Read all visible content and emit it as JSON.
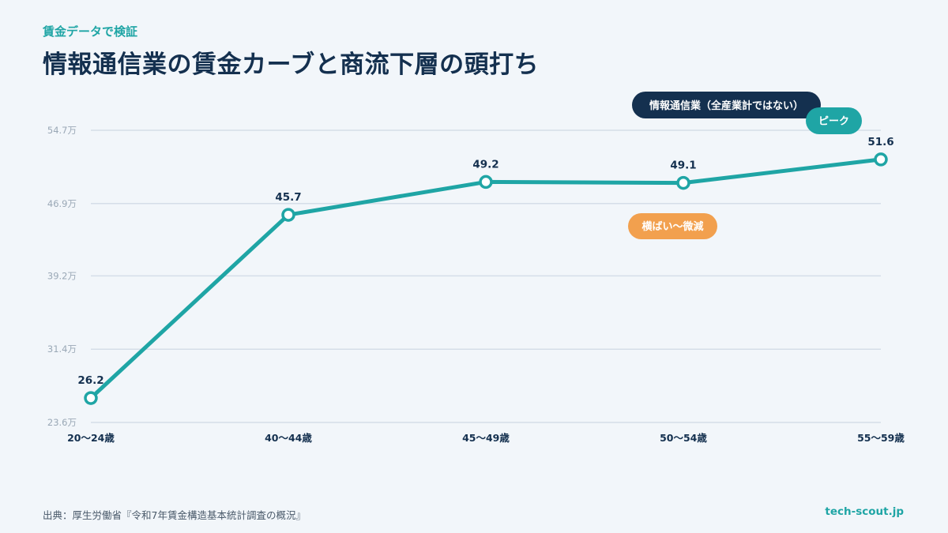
{
  "header": {
    "eyebrow": "賃金データで検証",
    "title": "情報通信業の賃金カーブと商流下層の頭打ち"
  },
  "chart_data": {
    "type": "line",
    "title": "情報通信業の賃金カーブと商流下層の頭打ち",
    "categories": [
      "20〜24歳",
      "40〜44歳",
      "45〜49歳",
      "50〜54歳",
      "55〜59歳"
    ],
    "series": [
      {
        "name": "情報通信業（全産業計ではない）",
        "values": [
          26.2,
          45.7,
          49.2,
          49.1,
          51.6
        ],
        "labels": [
          "26.2",
          "45.7",
          "49.2",
          "49.1",
          "51.6"
        ],
        "color": "#1fa5a5"
      }
    ],
    "y_ticks": [
      {
        "value": 23.6,
        "label": "23.6万"
      },
      {
        "value": 31.4,
        "label": "31.4万"
      },
      {
        "value": 39.2,
        "label": "39.2万"
      },
      {
        "value": 46.9,
        "label": "46.9万"
      },
      {
        "value": 54.7,
        "label": "54.7万"
      }
    ],
    "ylim": [
      23.6,
      54.7
    ],
    "grid": true,
    "legend": {
      "label": "情報通信業（全産業計ではない）",
      "placement": "top-right",
      "color": "#14304f"
    },
    "annotations": [
      {
        "label": "ピーク",
        "category_index": 4,
        "color": "#1fa5a5"
      },
      {
        "label": "横ばい〜微減",
        "category_index": 3,
        "color": "#f2a04e"
      }
    ]
  },
  "footer": {
    "source": "出典：厚生労働省『令和7年賃金構造基本統計調査の概況』",
    "site": "tech-scout.jp"
  }
}
